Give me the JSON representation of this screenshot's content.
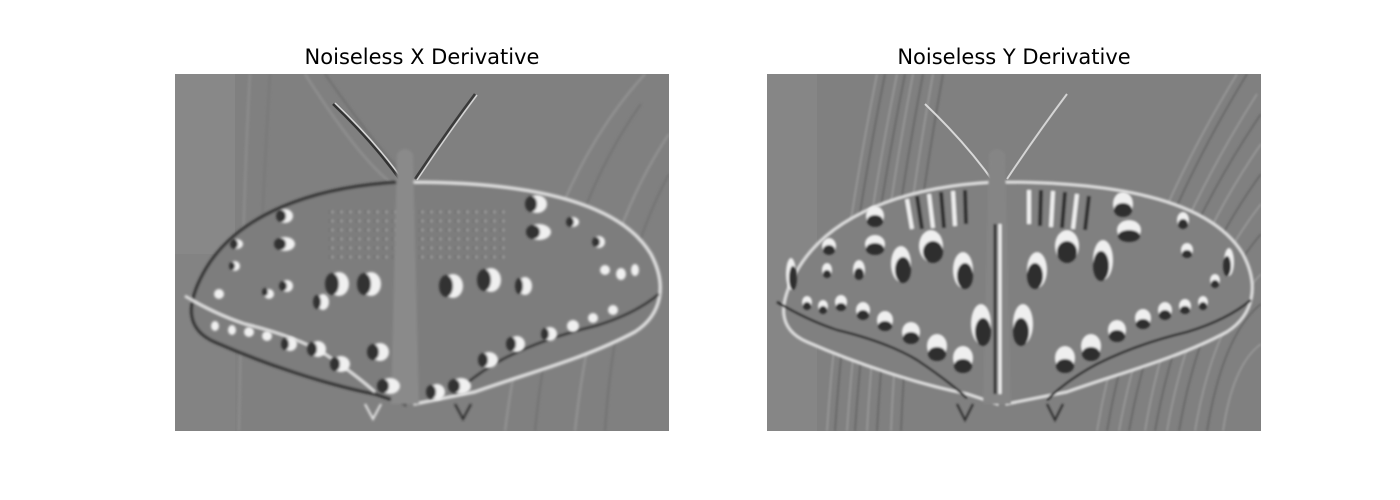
{
  "figure": {
    "panels": [
      {
        "title": "Noiseless X Derivative",
        "image": "butterfly-x-derivative-image"
      },
      {
        "title": "Noiseless Y Derivative",
        "image": "butterfly-y-derivative-image"
      }
    ],
    "colors": {
      "background": "#808080",
      "highlight": "#f4f4f4",
      "shadow": "#1e1e1e"
    }
  }
}
